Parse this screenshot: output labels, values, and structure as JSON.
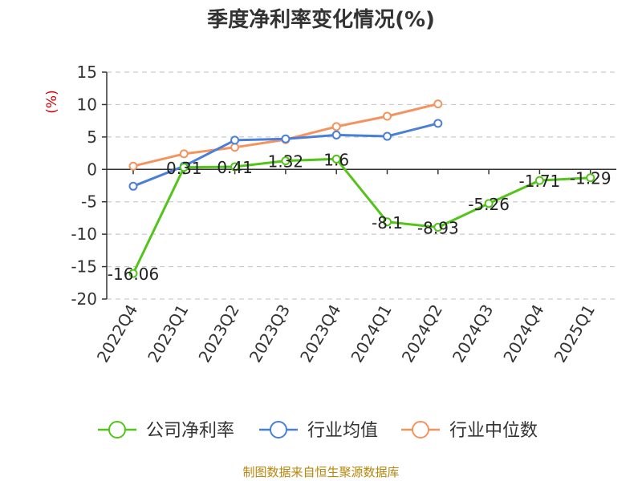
{
  "chart_data": {
    "type": "line",
    "title": "季度净利率变化情况(%)",
    "ylabel": "(%)",
    "xlabel": "",
    "categories": [
      "2022Q4",
      "2023Q1",
      "2023Q2",
      "2023Q3",
      "2023Q4",
      "2024Q1",
      "2024Q2",
      "2024Q3",
      "2024Q4",
      "2025Q1"
    ],
    "ylim": [
      -20,
      15
    ],
    "yticks": [
      "15",
      "10",
      "5",
      "0",
      "-5",
      "-10",
      "-15",
      "-20"
    ],
    "grid": true,
    "legend_position": "bottom",
    "series": [
      {
        "name": "公司净利率",
        "color": "#52c41a",
        "values": [
          -16.06,
          0.31,
          0.41,
          1.32,
          1.6,
          -8.1,
          -8.93,
          -5.26,
          -1.71,
          -1.29
        ],
        "labels": [
          "-16.06",
          "0.31",
          "0.41",
          "1.32",
          "1.6",
          "-8.1",
          "-8.93",
          "-5.26",
          "-1.71",
          "-1.29"
        ]
      },
      {
        "name": "行业均值",
        "color": "#4a7fd9",
        "values": [
          -2.6,
          0.5,
          4.5,
          4.7,
          5.3,
          5.1,
          7.1,
          null,
          null,
          null
        ]
      },
      {
        "name": "行业中位数",
        "color": "#f4935e",
        "values": [
          0.5,
          2.4,
          3.4,
          4.6,
          6.6,
          8.2,
          10.1,
          null,
          null,
          null
        ]
      }
    ]
  },
  "source": "制图数据来自恒生聚源数据库"
}
